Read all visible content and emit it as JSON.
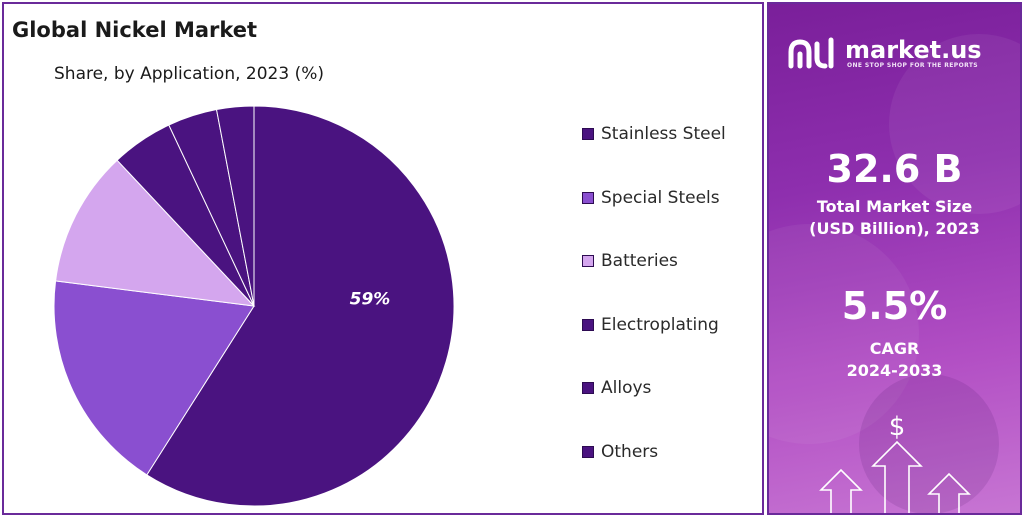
{
  "chart_data": {
    "type": "pie",
    "title": "Global Nickel Market",
    "subtitle": "Share, by Application, 2023 (%)",
    "categories": [
      "Stainless Steel",
      "Special Steels",
      "Batteries",
      "Electroplating",
      "Alloys",
      "Others"
    ],
    "values": [
      59,
      18,
      11,
      5,
      4,
      3
    ],
    "colors": [
      "#4a1380",
      "#8a4fd0",
      "#d4a6ee",
      "#4a1380",
      "#4a1380",
      "#4a1380"
    ],
    "data_labels": [
      "59%",
      "",
      "",
      "",
      "",
      ""
    ],
    "legend_position": "right"
  },
  "sidebar": {
    "brand_name": "market.us",
    "brand_tagline": "ONE STOP SHOP FOR THE REPORTS",
    "market_size_value": "32.6 B",
    "market_size_label_1": "Total Market Size",
    "market_size_label_2": "(USD Billion), 2023",
    "cagr_value": "5.5%",
    "cagr_label_1": "CAGR",
    "cagr_label_2": "2024-2033",
    "dollar_symbol": "$"
  },
  "colors": {
    "frame": "#6a2a9a",
    "accent_dark": "#4a1380",
    "accent_mid": "#8a4fd0",
    "accent_light": "#d4a6ee"
  }
}
